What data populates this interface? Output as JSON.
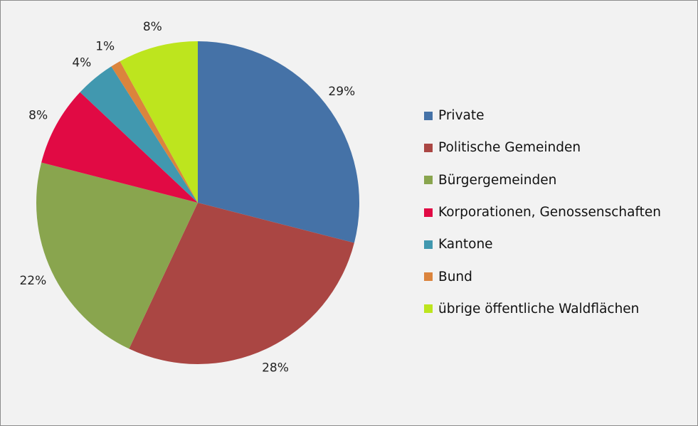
{
  "chart_data": {
    "type": "pie",
    "categories": [
      "Private",
      "Politische Gemeinden",
      "Bürgergemeinden",
      "Korporationen, Genossenschaften",
      "Kantone",
      "Bund",
      "übrige öffentliche Waldflächen"
    ],
    "values": [
      29,
      28,
      22,
      8,
      4,
      1,
      8
    ],
    "labels": [
      "29%",
      "28%",
      "22%",
      "8%",
      "4%",
      "1%",
      "8%"
    ],
    "colors": [
      "#4572a7",
      "#aa4643",
      "#89a54e",
      "#e10a44",
      "#4198af",
      "#db843d",
      "#bde51e"
    ],
    "start_angle": "top, clockwise",
    "legend_position": "right"
  }
}
